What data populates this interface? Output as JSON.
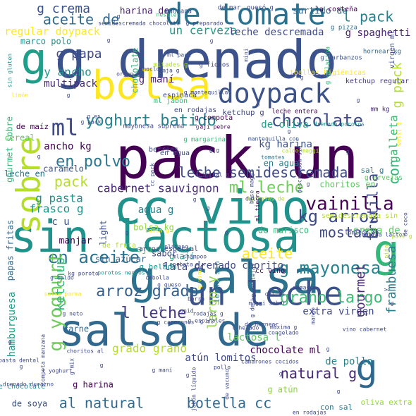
{
  "words": [
    {
      "text": "pack un",
      "color": "#440154"
    },
    {
      "text": "g drenado",
      "color": "#3b528b"
    },
    {
      "text": "cc vino",
      "color": "#21918c"
    },
    {
      "text": "sin lactosa",
      "color": "#21918c"
    },
    {
      "text": "g salsa",
      "color": "#2c728e"
    },
    {
      "text": "salsa de",
      "color": "#31688e"
    },
    {
      "text": "de tomate",
      "color": "#2c728e"
    },
    {
      "text": "un leche",
      "color": "#3b528b"
    },
    {
      "text": "bolsa",
      "color": "#fde725"
    },
    {
      "text": "g",
      "color": "#35b779"
    },
    {
      "text": "doypack",
      "color": "#3b528b"
    },
    {
      "text": "sobre",
      "color": "#b5de2b"
    },
    {
      "text": "g",
      "color": "#1f9e89"
    },
    {
      "text": "g",
      "color": "#31688e"
    },
    {
      "text": "ml",
      "color": "#3e4989"
    },
    {
      "text": "leche semidescremada",
      "color": "#3e4989"
    },
    {
      "text": "chocolate",
      "color": "#3e4989"
    },
    {
      "text": "yoghurt batido",
      "color": "#26828e"
    },
    {
      "text": "en polvo",
      "color": "#2a788e"
    },
    {
      "text": "vainilla",
      "color": "#440154"
    },
    {
      "text": "kg arroz",
      "color": "#3e4989"
    },
    {
      "text": "ml leche",
      "color": "#6ece58"
    },
    {
      "text": "cabernet sauvignon",
      "color": "#482878"
    },
    {
      "text": "en aceite",
      "color": "#2c728e"
    },
    {
      "text": "arroz grado",
      "color": "#355f8d"
    },
    {
      "text": "grano largo",
      "color": "#3fbc73"
    },
    {
      "text": "g mayonesa",
      "color": "#26828e"
    },
    {
      "text": "l leche",
      "color": "#443983"
    },
    {
      "text": "aceite",
      "color": "#fde725"
    },
    {
      "text": "al natural",
      "color": "#31688e"
    },
    {
      "text": "botella cc",
      "color": "#31688e"
    },
    {
      "text": "natural g",
      "color": "#482878"
    },
    {
      "text": "mostaza",
      "color": "#3e4989"
    },
    {
      "text": "g yoghurt",
      "color": "#6ece58"
    },
    {
      "text": "ketchup",
      "color": "#35b779"
    },
    {
      "text": "largo y",
      "color": "#90d743"
    },
    {
      "text": "gourmet",
      "color": "#482878"
    },
    {
      "text": "frutilla",
      "color": "#3e4989"
    },
    {
      "text": "frambuesa",
      "color": "#287c8e"
    },
    {
      "text": "pack",
      "color": "#b5de2b"
    },
    {
      "text": "aceite de",
      "color": "#31688e"
    },
    {
      "text": "g crema",
      "color": "#3b528b"
    },
    {
      "text": "regular doypack",
      "color": "#fde725"
    },
    {
      "text": "un cerveza",
      "color": "#1f9e89"
    },
    {
      "text": "leche descremada",
      "color": "#3e4989"
    },
    {
      "text": "l pack",
      "color": "#26828e"
    },
    {
      "text": "g spaghetti",
      "color": "#481f70"
    },
    {
      "text": "g papa",
      "color": "#3e4989"
    },
    {
      "text": "y ancho",
      "color": "#21918c"
    },
    {
      "text": "multipack",
      "color": "#482878"
    },
    {
      "text": "g maní",
      "color": "#481f70"
    },
    {
      "text": "ancho kg",
      "color": "#440154"
    },
    {
      "text": "de oliva",
      "color": "#1f9e89"
    },
    {
      "text": "kg harina",
      "color": "#3b528b"
    },
    {
      "text": "galleta",
      "color": "#3fbc73"
    },
    {
      "text": "con",
      "color": "#35b779"
    },
    {
      "text": "g pack",
      "color": "#b5de2b"
    },
    {
      "text": "g pasta",
      "color": "#21918c"
    },
    {
      "text": "frasco g",
      "color": "#21918c"
    },
    {
      "text": "agua g",
      "color": "#26828e"
    },
    {
      "text": "bolsa kg",
      "color": "#90d743"
    },
    {
      "text": "papas fritas",
      "color": "#31688e"
    },
    {
      "text": "en agua",
      "color": "#287c8e"
    },
    {
      "text": "de marisco",
      "color": "#35b779"
    },
    {
      "text": "crema de",
      "color": "#5ec962"
    },
    {
      "text": "extra virgen",
      "color": "#3e4989"
    },
    {
      "text": "drenado chorito",
      "color": "#3e4989"
    },
    {
      "text": "hamburguesa",
      "color": "#1f9e89"
    },
    {
      "text": "chocolate ml",
      "color": "#440154"
    },
    {
      "text": "lactosa l",
      "color": "#5ec962"
    },
    {
      "text": "atún lomitos",
      "color": "#3e4989"
    },
    {
      "text": "de pollo",
      "color": "#26828e"
    },
    {
      "text": "de soya",
      "color": "#3b528b"
    },
    {
      "text": "g harina",
      "color": "#440154"
    },
    {
      "text": "grado grano",
      "color": "#b5de2b"
    },
    {
      "text": "harina de",
      "color": "#481f70"
    },
    {
      "text": "surtido de",
      "color": "#31688e"
    },
    {
      "text": "marco polo",
      "color": "#21918c"
    },
    {
      "text": "chocolate",
      "color": "#35b779"
    },
    {
      "text": "gourmet sobre",
      "color": "#35b779"
    },
    {
      "text": "leche en",
      "color": "#2c728e"
    },
    {
      "text": "cereal",
      "color": "#5ec962"
    },
    {
      "text": "caramelo",
      "color": "#3b528b"
    },
    {
      "text": "en rodajas",
      "color": "#3e4989"
    },
    {
      "text": "ketchup g",
      "color": "#3e4989"
    },
    {
      "text": "c u",
      "color": "#3b528b"
    },
    {
      "text": "manjar",
      "color": "#440154"
    },
    {
      "text": "sabor",
      "color": "#3e4989"
    },
    {
      "text": "carne",
      "color": "#31688e"
    },
    {
      "text": "sin azúcar",
      "color": "#355f8d"
    },
    {
      "text": "g ají",
      "color": "#21918c"
    },
    {
      "text": "ajo",
      "color": "#3fbc73"
    },
    {
      "text": "light",
      "color": "#3b528b"
    },
    {
      "text": "de fruta",
      "color": "#b5de2b"
    },
    {
      "text": "lata cc",
      "color": "#3e4989"
    },
    {
      "text": "g helado",
      "color": "#21918c"
    },
    {
      "text": "g atún",
      "color": "#90d743"
    },
    {
      "text": "oliva extra",
      "color": "#90d743"
    },
    {
      "text": "con sal",
      "color": "#2a788e"
    },
    {
      "text": "de chocolate",
      "color": "#26828e"
    },
    {
      "text": "arroz especial",
      "color": "#3e4989"
    },
    {
      "text": "leche sin",
      "color": "#2c728e"
    },
    {
      "text": "cc vino",
      "color": "#440154"
    },
    {
      "text": "de maíz",
      "color": "#440154"
    },
    {
      "text": "choritos en",
      "color": "#5ec962"
    },
    {
      "text": "semidescremada sin",
      "color": "#b5de2b"
    },
    {
      "text": "sal g",
      "color": "#2a788e"
    },
    {
      "text": "g arvejas",
      "color": "#5ec962"
    },
    {
      "text": "g compota",
      "color": "#440154"
    },
    {
      "text": "leche entera",
      "color": "#440154"
    },
    {
      "text": "mm kg",
      "color": "#482878"
    },
    {
      "text": "toallas higiénicas",
      "color": "#fde725"
    },
    {
      "text": "ketchup regular",
      "color": "#443983"
    },
    {
      "text": "hornear kg",
      "color": "#31688e"
    },
    {
      "text": "g garbanzos",
      "color": "#3b528b"
    },
    {
      "text": "g gelatina",
      "color": "#35b779"
    },
    {
      "text": "la costeña",
      "color": "#440154"
    },
    {
      "text": "g pizza",
      "color": "#2c728e"
    },
    {
      "text": "manzana",
      "color": "#3e4989"
    },
    {
      "text": "de mar",
      "color": "#3e4989"
    },
    {
      "text": "quesó g",
      "color": "#3e4989"
    },
    {
      "text": "g preparado",
      "color": "#3e4989"
    },
    {
      "text": "nestlé",
      "color": "#35b779"
    },
    {
      "text": "semidescremada chocolate",
      "color": "#3e4989"
    },
    {
      "text": "sin gluten",
      "color": "#21918c"
    },
    {
      "text": "limón",
      "color": "#fde725"
    },
    {
      "text": "virgen ml",
      "color": "#3e4989"
    },
    {
      "text": "g fideos",
      "color": "#3e4989"
    },
    {
      "text": "caja g",
      "color": "#3e4989"
    },
    {
      "text": "mitades g",
      "color": "#b5de2b"
    },
    {
      "text": "ml pack",
      "color": "#3b528b"
    },
    {
      "text": "g mantequilla",
      "color": "#3e4989"
    },
    {
      "text": "espinaca",
      "color": "#3e4989"
    },
    {
      "text": "ml jabón",
      "color": "#35b779"
    },
    {
      "text": "mantequilla con",
      "color": "#3b528b"
    },
    {
      "text": "mayonesa suprema",
      "color": "#3e4989"
    },
    {
      "text": "aji pebre",
      "color": "#440154"
    },
    {
      "text": "descremada sin",
      "color": "#3e4989"
    },
    {
      "text": "drenado porotos",
      "color": "#21918c"
    },
    {
      "text": "wasil g",
      "color": "#fde725"
    },
    {
      "text": "g margarina",
      "color": "#35b779"
    },
    {
      "text": "berries",
      "color": "#3e4989"
    },
    {
      "text": "en agua",
      "color": "#3e4989"
    },
    {
      "text": "tomates",
      "color": "#2c728e"
    },
    {
      "text": "lentejas de",
      "color": "#b5de2b"
    },
    {
      "text": "ml tierra",
      "color": "#440154"
    },
    {
      "text": "dulce",
      "color": "#3e4989"
    },
    {
      "text": "base maggi",
      "color": "#3e4989"
    },
    {
      "text": "lomitos en",
      "color": "#3e4989"
    },
    {
      "text": "bebida láctea",
      "color": "#3e4989"
    },
    {
      "text": "piña",
      "color": "#b5de2b"
    },
    {
      "text": "pote g",
      "color": "#b5de2b"
    },
    {
      "text": "de coco",
      "color": "#3e4989"
    },
    {
      "text": "plátano",
      "color": "#3e4989"
    },
    {
      "text": "ml shampoo",
      "color": "#3e4989"
    },
    {
      "text": "g corbata",
      "color": "#3e4989"
    },
    {
      "text": "porotos negros",
      "color": "#21918c"
    },
    {
      "text": "compota manzana",
      "color": "#3e4989"
    },
    {
      "text": "salsa parma",
      "color": "#fde725"
    },
    {
      "text": "g caldo",
      "color": "#3e4989"
    },
    {
      "text": "kg poroto",
      "color": "#3e4989"
    },
    {
      "text": "cebolla",
      "color": "#3e4989"
    },
    {
      "text": "g queso",
      "color": "#3e4989"
    },
    {
      "text": "kg lentejas",
      "color": "#3e4989"
    },
    {
      "text": "maggi sabor",
      "color": "#3e4989"
    },
    {
      "text": "g espirales",
      "color": "#3e4989"
    },
    {
      "text": "rodajas g",
      "color": "#3e4989"
    },
    {
      "text": "g de",
      "color": "#3e4989"
    },
    {
      "text": "de hornear",
      "color": "#3e4989"
    },
    {
      "text": "máxima g",
      "color": "#3e4989"
    },
    {
      "text": "congelado",
      "color": "#3e4989"
    },
    {
      "text": "l helado",
      "color": "#3e4989"
    },
    {
      "text": "g camarones",
      "color": "#3e4989"
    },
    {
      "text": "vino cabernet",
      "color": "#3e4989"
    },
    {
      "text": "mango",
      "color": "#3e4989"
    },
    {
      "text": "damasco",
      "color": "#3e4989"
    },
    {
      "text": "cat vi",
      "color": "#3e4989"
    },
    {
      "text": "g neto",
      "color": "#3e4989"
    },
    {
      "text": "choritos al",
      "color": "#3e4989"
    },
    {
      "text": "g mix",
      "color": "#3e4989"
    },
    {
      "text": "pasta dental",
      "color": "#3e4989"
    },
    {
      "text": "l yoghurt",
      "color": "#3e4989"
    },
    {
      "text": "drenado durazno",
      "color": "#3e4989"
    },
    {
      "text": "de vacuno",
      "color": "#3e4989"
    },
    {
      "text": "jabón líquido",
      "color": "#3e4989"
    },
    {
      "text": "camarones cocidos",
      "color": "#3e4989"
    },
    {
      "text": "pollo",
      "color": "#3e4989"
    },
    {
      "text": "en rodajas",
      "color": "#3e4989"
    },
    {
      "text": "g maní",
      "color": "#3e4989"
    },
    {
      "text": "mini",
      "color": "#3e4989"
    },
    {
      "text": "choclo",
      "color": "#3e4989"
    },
    {
      "text": "organ g",
      "color": "#3e4989"
    },
    {
      "text": "g es",
      "color": "#3e4989"
    },
    {
      "text": "g pack",
      "color": "#3e4989"
    },
    {
      "text": "cc pack",
      "color": "#3e4989"
    },
    {
      "text": "g g",
      "color": "#3e4989"
    },
    {
      "text": "caldo maggi",
      "color": "#b5de2b"
    },
    {
      "text": "original g",
      "color": "#3e4989"
    },
    {
      "text": "g vino",
      "color": "#fde725"
    },
    {
      "text": "g ml",
      "color": "#3e4989"
    },
    {
      "text": "unid",
      "color": "#3e4989"
    },
    {
      "text": "bolsa g",
      "color": "#fde725"
    },
    {
      "text": "g",
      "color": "#3e4989"
    },
    {
      "text": "barra",
      "color": "#3e4989"
    },
    {
      "text": "y",
      "color": "#3e4989"
    },
    {
      "text": "g",
      "color": "#3e4989"
    },
    {
      "text": "g",
      "color": "#3e4989"
    },
    {
      "text": "g",
      "color": "#3e4989"
    },
    {
      "text": "g",
      "color": "#3e4989"
    },
    {
      "text": "g",
      "color": "#3e4989"
    },
    {
      "text": "g",
      "color": "#3e4989"
    },
    {
      "text": "g",
      "color": "#3e4989"
    },
    {
      "text": "g",
      "color": "#3e4989"
    },
    {
      "text": "g",
      "color": "#3e4989"
    },
    {
      "text": "g",
      "color": "#3e4989"
    },
    {
      "text": "g",
      "color": "#3e4989"
    },
    {
      "text": "g",
      "color": "#3e4989"
    },
    {
      "text": "g",
      "color": "#3e4989"
    },
    {
      "text": "g",
      "color": "#3e4989"
    },
    {
      "text": "g",
      "color": "#3e4989"
    },
    {
      "text": "g",
      "color": "#3e4989"
    },
    {
      "text": "g",
      "color": "#3e4989"
    },
    {
      "text": "g",
      "color": "#3e4989"
    },
    {
      "text": "g",
      "color": "#3e4989"
    },
    {
      "text": "g",
      "color": "#3e4989"
    },
    {
      "text": "g",
      "color": "#3e4989"
    },
    {
      "text": "g",
      "color": "#3e4989"
    },
    {
      "text": "g",
      "color": "#3e4989"
    },
    {
      "text": "g",
      "color": "#3e4989"
    },
    {
      "text": "g",
      "color": "#3e4989"
    }
  ]
}
